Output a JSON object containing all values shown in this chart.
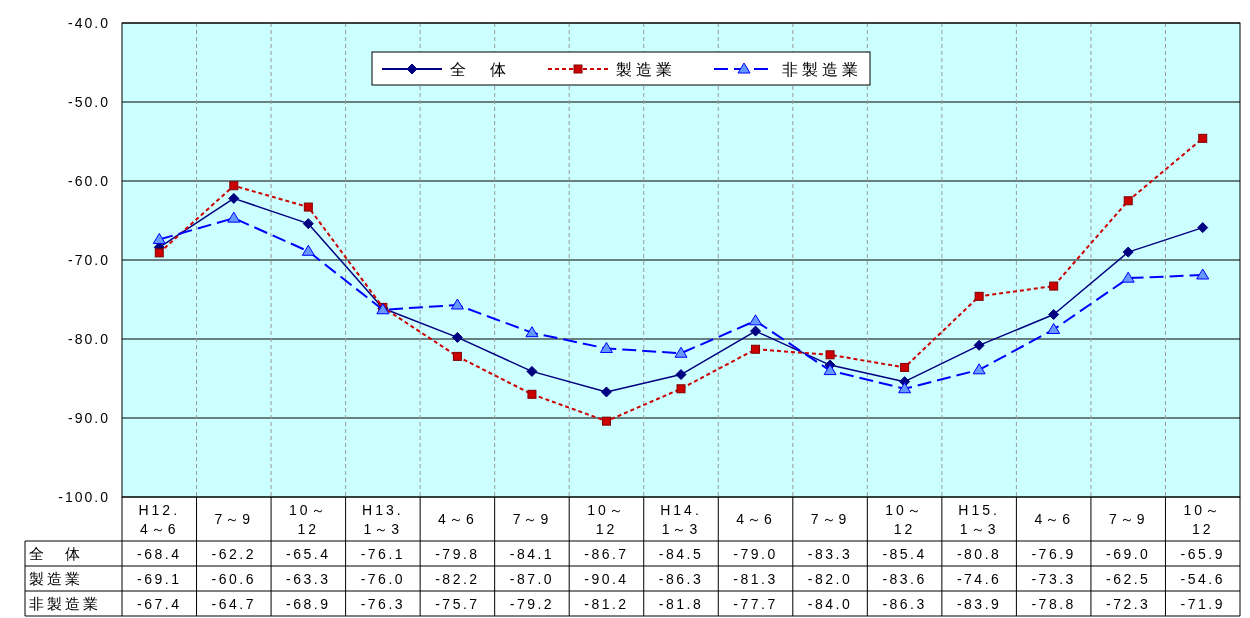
{
  "chart_data": {
    "type": "line",
    "categories": [
      "H12.\n4～6",
      "7～9",
      "10～\n12",
      "H13.\n1～3",
      "4～6",
      "7～9",
      "10～\n12",
      "H14.\n1～3",
      "4～6",
      "7～9",
      "10～\n12",
      "H15.\n1～3",
      "4～6",
      "7～9",
      "10～\n12"
    ],
    "series": [
      {
        "name": "全　体",
        "color": "#000080",
        "marker": "diamond",
        "line_style": "solid",
        "values": [
          -68.4,
          -62.2,
          -65.4,
          -76.1,
          -79.8,
          -84.1,
          -86.7,
          -84.5,
          -79.0,
          -83.3,
          -85.4,
          -80.8,
          -76.9,
          -69.0,
          -65.9
        ],
        "value_labels": [
          "-68.4",
          "-62.2",
          "-65.4",
          "-76.1",
          "-79.8",
          "-84.1",
          "-86.7",
          "-84.5",
          "-79.0",
          "-83.3",
          "-85.4",
          "-80.8",
          "-76.9",
          "-69.0",
          "-65.9"
        ]
      },
      {
        "name": "製造業",
        "color": "#cc0000",
        "marker": "square",
        "line_style": "dotted",
        "values": [
          -69.1,
          -60.6,
          -63.3,
          -76.0,
          -82.2,
          -87.0,
          -90.4,
          -86.3,
          -81.3,
          -82.0,
          -83.6,
          -74.6,
          -73.3,
          -62.5,
          -54.6
        ],
        "value_labels": [
          "-69.1",
          "-60.6",
          "-63.3",
          "-76.0",
          "-82.2",
          "-87.0",
          "-90.4",
          "-86.3",
          "-81.3",
          "-82.0",
          "-83.6",
          "-74.6",
          "-73.3",
          "-62.5",
          "-54.6"
        ]
      },
      {
        "name": "非製造業",
        "color": "#0000ff",
        "marker": "triangle",
        "line_style": "dashed",
        "values": [
          -67.4,
          -64.7,
          -68.9,
          -76.3,
          -75.7,
          -79.2,
          -81.2,
          -81.8,
          -77.7,
          -84.0,
          -86.3,
          -83.9,
          -78.8,
          -72.3,
          -71.9
        ],
        "value_labels": [
          "-67.4",
          "-64.7",
          "-68.9",
          "-76.3",
          "-75.7",
          "-79.2",
          "-81.2",
          "-81.8",
          "-77.7",
          "-84.0",
          "-86.3",
          "-83.9",
          "-78.8",
          "-72.3",
          "-71.9"
        ]
      }
    ],
    "ylim": [
      -100,
      -40
    ],
    "yticks": [
      {
        "value": -40,
        "label": "-40.0"
      },
      {
        "value": -50,
        "label": "-50.0"
      },
      {
        "value": -60,
        "label": "-60.0"
      },
      {
        "value": -70,
        "label": "-70.0"
      },
      {
        "value": -80,
        "label": "-80.0"
      },
      {
        "value": -90,
        "label": "-90.0"
      },
      {
        "value": -100,
        "label": "-100.0"
      }
    ],
    "grid": true,
    "legend": "top"
  }
}
